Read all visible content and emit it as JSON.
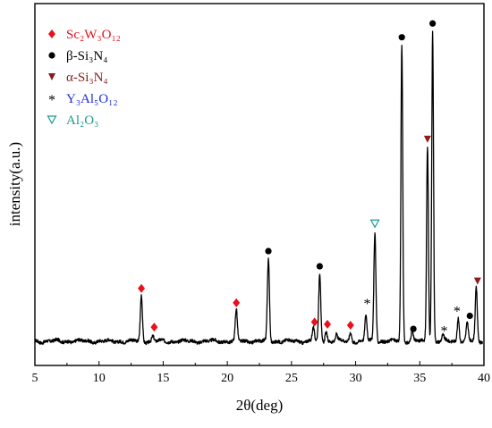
{
  "chart_data": {
    "type": "line",
    "title": "",
    "xlabel": "2θ(deg)",
    "ylabel": "intensity(a.u.)",
    "xlim": [
      5,
      40
    ],
    "ylim": [
      0,
      100
    ],
    "x_ticks": [
      5,
      10,
      15,
      20,
      25,
      30,
      35,
      40
    ],
    "y_ticks_shown": false,
    "grid": false,
    "legend_position": "top-left",
    "series": [
      {
        "values": "XRD diffraction pattern",
        "baseline": 6.7,
        "peaks": [
          {
            "x": 13.3,
            "y": 19.4
          },
          {
            "x": 14.2,
            "y": 8.0
          },
          {
            "x": 20.7,
            "y": 15.2
          },
          {
            "x": 23.2,
            "y": 29.5
          },
          {
            "x": 26.7,
            "y": 10.5
          },
          {
            "x": 27.2,
            "y": 25.3
          },
          {
            "x": 27.7,
            "y": 9.6
          },
          {
            "x": 28.5,
            "y": 8.6
          },
          {
            "x": 29.6,
            "y": 9.1
          },
          {
            "x": 30.8,
            "y": 14.0
          },
          {
            "x": 31.5,
            "y": 36.7
          },
          {
            "x": 33.6,
            "y": 88.5
          },
          {
            "x": 34.4,
            "y": 9.5
          },
          {
            "x": 35.6,
            "y": 60.6
          },
          {
            "x": 36.0,
            "y": 92.1
          },
          {
            "x": 36.8,
            "y": 8.1
          },
          {
            "x": 38.0,
            "y": 13.3
          },
          {
            "x": 38.7,
            "y": 11.8
          },
          {
            "x": 39.4,
            "y": 21.2
          }
        ]
      }
    ],
    "legend": [
      {
        "label": "Sc₂W₃O₁₂",
        "symbol": "diamond",
        "color": "#e8111b"
      },
      {
        "label": "β-Si₃N₄",
        "symbol": "circle",
        "color": "#000000"
      },
      {
        "label": "α-Si₃N₄",
        "symbol": "triangle-down",
        "color": "#8b1a1a"
      },
      {
        "label": "Y₃Al₅O₁₂",
        "symbol": "asterisk",
        "color": "#1f2bd6"
      },
      {
        "label": "Al₂O₃",
        "symbol": "triangle-down-open",
        "color": "#1a9a8a"
      }
    ],
    "annotations": [
      {
        "x": 13.3,
        "y": 21.3,
        "symbol": "diamond"
      },
      {
        "x": 14.3,
        "y": 10.6,
        "symbol": "diamond"
      },
      {
        "x": 20.7,
        "y": 17.3,
        "symbol": "diamond"
      },
      {
        "x": 26.8,
        "y": 12.0,
        "symbol": "diamond"
      },
      {
        "x": 27.8,
        "y": 11.4,
        "symbol": "diamond"
      },
      {
        "x": 29.6,
        "y": 11.1,
        "symbol": "diamond"
      },
      {
        "x": 23.2,
        "y": 31.6,
        "symbol": "circle"
      },
      {
        "x": 27.2,
        "y": 27.4,
        "symbol": "circle"
      },
      {
        "x": 33.6,
        "y": 90.7,
        "symbol": "circle"
      },
      {
        "x": 34.5,
        "y": 10.1,
        "symbol": "circle"
      },
      {
        "x": 36.0,
        "y": 94.5,
        "symbol": "circle"
      },
      {
        "x": 38.9,
        "y": 13.7,
        "symbol": "circle"
      },
      {
        "x": 35.6,
        "y": 62.5,
        "symbol": "triangle-down"
      },
      {
        "x": 39.5,
        "y": 23.3,
        "symbol": "triangle-down"
      },
      {
        "x": 30.9,
        "y": 17.5,
        "symbol": "asterisk"
      },
      {
        "x": 36.9,
        "y": 10.0,
        "symbol": "asterisk"
      },
      {
        "x": 37.9,
        "y": 15.4,
        "symbol": "asterisk"
      },
      {
        "x": 31.5,
        "y": 39.2,
        "symbol": "triangle-down-open"
      }
    ]
  }
}
